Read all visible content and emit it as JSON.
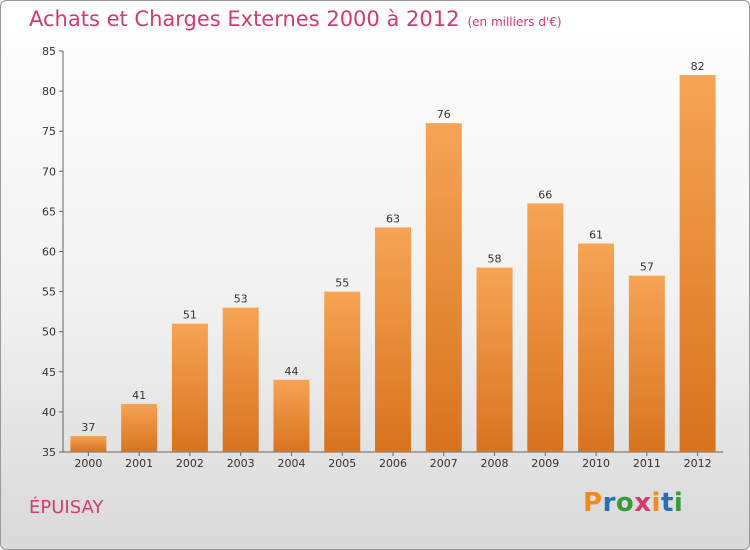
{
  "header": {
    "title": "Achats et Charges Externes 2000 à 2012",
    "subtitle": "(en milliers d'€)"
  },
  "footer": {
    "commune": "ÉPUISAY",
    "logo": "Proxiti"
  },
  "colors": {
    "accent": "#d23b6d",
    "bar_top": "#f6a455",
    "bar_bottom": "#d8731f",
    "logo": [
      "#f08a1c",
      "#2a6fb6",
      "#3a9a3a",
      "#d23b6d",
      "#f08a1c",
      "#2a6fb6",
      "#3a9a3a"
    ]
  },
  "chart_data": {
    "type": "bar",
    "title": "Achats et Charges Externes 2000 à 2012",
    "subtitle": "(en milliers d'€)",
    "categories": [
      "2000",
      "2001",
      "2002",
      "2003",
      "2004",
      "2005",
      "2006",
      "2007",
      "2008",
      "2009",
      "2010",
      "2011",
      "2012"
    ],
    "values": [
      37,
      41,
      51,
      53,
      44,
      55,
      63,
      76,
      58,
      66,
      61,
      57,
      82
    ],
    "ylim": [
      35,
      85
    ],
    "yticks": [
      35,
      40,
      45,
      50,
      55,
      60,
      65,
      70,
      75,
      80,
      85
    ],
    "xlabel": "",
    "ylabel": "",
    "grid": false,
    "data_labels": true
  }
}
